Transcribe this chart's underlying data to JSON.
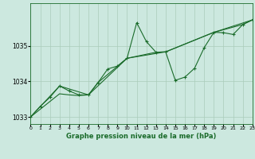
{
  "title": "Graphe pression niveau de la mer (hPa)",
  "bg_color": "#cce8df",
  "grid_color": "#aaccbb",
  "line_color": "#1a6b2a",
  "x_min": 0,
  "x_max": 23,
  "y_min": 1032.8,
  "y_max": 1036.2,
  "y_ticks": [
    1033,
    1034,
    1035
  ],
  "x_ticks": [
    0,
    1,
    2,
    3,
    4,
    5,
    6,
    7,
    8,
    9,
    10,
    11,
    12,
    13,
    14,
    15,
    16,
    17,
    18,
    19,
    20,
    21,
    22,
    23
  ],
  "series1": [
    [
      0,
      1033.0
    ],
    [
      1,
      1033.3
    ],
    [
      2,
      1033.55
    ],
    [
      3,
      1033.87
    ],
    [
      4,
      1033.73
    ],
    [
      5,
      1033.62
    ],
    [
      6,
      1033.62
    ],
    [
      7,
      1033.97
    ],
    [
      8,
      1034.35
    ],
    [
      9,
      1034.43
    ],
    [
      10,
      1034.65
    ],
    [
      11,
      1035.65
    ],
    [
      12,
      1035.12
    ],
    [
      13,
      1034.82
    ],
    [
      14,
      1034.83
    ],
    [
      15,
      1034.03
    ],
    [
      16,
      1034.12
    ],
    [
      17,
      1034.37
    ],
    [
      18,
      1034.95
    ],
    [
      19,
      1035.38
    ],
    [
      20,
      1035.37
    ],
    [
      21,
      1035.32
    ],
    [
      22,
      1035.6
    ],
    [
      23,
      1035.73
    ]
  ],
  "series2": [
    [
      0,
      1033.0
    ],
    [
      3,
      1033.65
    ],
    [
      4,
      1033.62
    ],
    [
      5,
      1033.6
    ],
    [
      6,
      1033.62
    ],
    [
      7,
      1033.97
    ],
    [
      10,
      1034.65
    ],
    [
      13,
      1034.82
    ],
    [
      14,
      1034.83
    ],
    [
      19,
      1035.38
    ],
    [
      22,
      1035.6
    ],
    [
      23,
      1035.73
    ]
  ],
  "series3": [
    [
      0,
      1033.0
    ],
    [
      3,
      1033.87
    ],
    [
      6,
      1033.62
    ],
    [
      10,
      1034.65
    ],
    [
      14,
      1034.83
    ],
    [
      19,
      1035.38
    ],
    [
      23,
      1035.73
    ]
  ]
}
